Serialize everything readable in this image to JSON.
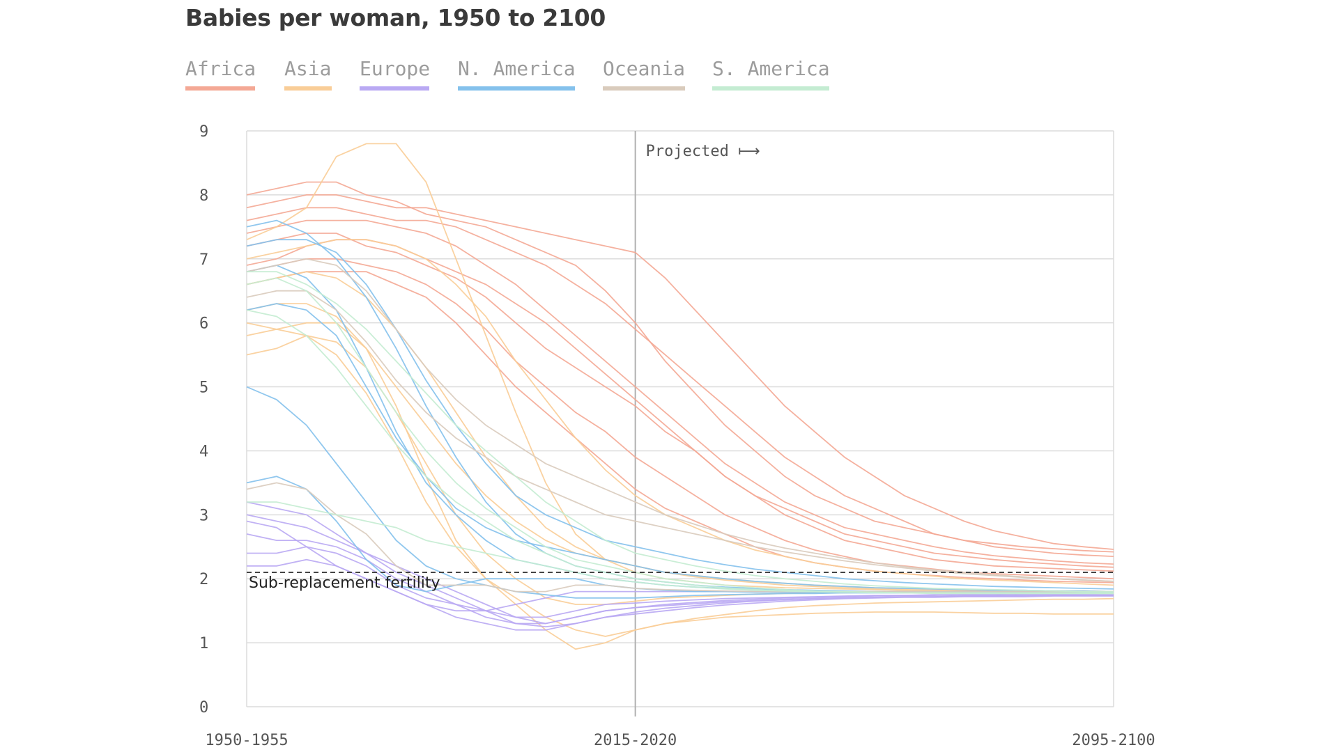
{
  "chart_data": {
    "type": "line",
    "title": "Babies per woman, 1950 to 2100",
    "xlabel": "",
    "ylabel": "",
    "x": [
      "1950-1955",
      "1955-1960",
      "1960-1965",
      "1965-1970",
      "1970-1975",
      "1975-1980",
      "1980-1985",
      "1985-1990",
      "1990-1995",
      "1995-2000",
      "2000-2005",
      "2005-2010",
      "2010-2015",
      "2015-2020",
      "2020-2025",
      "2025-2030",
      "2030-2035",
      "2035-2040",
      "2040-2045",
      "2045-2050",
      "2050-2055",
      "2055-2060",
      "2060-2065",
      "2065-2070",
      "2070-2075",
      "2075-2080",
      "2080-2085",
      "2085-2090",
      "2090-2095",
      "2095-2100"
    ],
    "x_tick_labels": [
      "1950-1955",
      "2015-2020",
      "2095-2100"
    ],
    "ylim": [
      0,
      9
    ],
    "y_ticks": [
      0,
      1,
      2,
      3,
      4,
      5,
      6,
      7,
      8,
      9
    ],
    "grid": true,
    "legend_position": "top",
    "projection_start": "2015-2020",
    "projection_label": "Projected ⟼",
    "reference_line": {
      "value": 2.1,
      "label": "Sub-replacement fertility",
      "style": "dashed"
    },
    "regions": [
      {
        "name": "Africa",
        "color": "#f4a895"
      },
      {
        "name": "Asia",
        "color": "#f9cd97"
      },
      {
        "name": "Europe",
        "color": "#b9a9f3"
      },
      {
        "name": "N. America",
        "color": "#84c1ec"
      },
      {
        "name": "Oceania",
        "color": "#d9cbbc"
      },
      {
        "name": "S. America",
        "color": "#c4ecd2"
      }
    ],
    "series": [
      {
        "region": "Africa",
        "values": [
          8.0,
          8.1,
          8.2,
          8.2,
          8.0,
          7.9,
          7.7,
          7.6,
          7.5,
          7.3,
          7.1,
          6.9,
          6.5,
          6.0,
          5.4,
          4.9,
          4.4,
          4.0,
          3.6,
          3.3,
          3.1,
          2.9,
          2.8,
          2.7,
          2.6,
          2.55,
          2.5,
          2.47,
          2.44,
          2.42
        ]
      },
      {
        "region": "Africa",
        "values": [
          7.6,
          7.7,
          7.8,
          7.8,
          7.7,
          7.6,
          7.6,
          7.5,
          7.3,
          7.1,
          6.9,
          6.6,
          6.3,
          5.9,
          5.5,
          5.1,
          4.7,
          4.3,
          3.9,
          3.6,
          3.3,
          3.1,
          2.9,
          2.7,
          2.6,
          2.5,
          2.45,
          2.4,
          2.37,
          2.35
        ]
      },
      {
        "region": "Africa",
        "values": [
          7.2,
          7.3,
          7.4,
          7.4,
          7.2,
          7.1,
          6.9,
          6.7,
          6.4,
          6.0,
          5.6,
          5.3,
          5.0,
          4.7,
          4.3,
          4.0,
          3.6,
          3.3,
          3.0,
          2.8,
          2.6,
          2.5,
          2.4,
          2.3,
          2.25,
          2.2,
          2.18,
          2.16,
          2.14,
          2.12
        ]
      },
      {
        "region": "Africa",
        "values": [
          6.8,
          6.9,
          7.0,
          7.0,
          6.9,
          6.8,
          6.6,
          6.3,
          5.9,
          5.4,
          5.0,
          4.6,
          4.3,
          3.9,
          3.6,
          3.3,
          3.0,
          2.8,
          2.6,
          2.45,
          2.35,
          2.25,
          2.2,
          2.15,
          2.1,
          2.08,
          2.06,
          2.04,
          2.02,
          2.0
        ]
      },
      {
        "region": "Africa",
        "values": [
          6.6,
          6.7,
          6.8,
          6.8,
          6.8,
          6.6,
          6.4,
          6.0,
          5.5,
          5.0,
          4.6,
          4.2,
          3.8,
          3.4,
          3.1,
          2.9,
          2.7,
          2.5,
          2.35,
          2.25,
          2.18,
          2.12,
          2.08,
          2.05,
          2.02,
          2.0,
          1.98,
          1.96,
          1.95,
          1.94
        ]
      },
      {
        "region": "Africa",
        "values": [
          6.9,
          7.0,
          7.2,
          7.3,
          7.3,
          7.2,
          7.0,
          6.8,
          6.6,
          6.3,
          6.0,
          5.6,
          5.2,
          4.8,
          4.4,
          4.0,
          3.6,
          3.3,
          3.1,
          2.9,
          2.7,
          2.6,
          2.5,
          2.4,
          2.35,
          2.3,
          2.26,
          2.23,
          2.2,
          2.18
        ]
      },
      {
        "region": "Africa",
        "values": [
          7.4,
          7.5,
          7.6,
          7.6,
          7.6,
          7.5,
          7.4,
          7.2,
          6.9,
          6.6,
          6.2,
          5.8,
          5.4,
          5.0,
          4.6,
          4.2,
          3.8,
          3.5,
          3.2,
          3.0,
          2.8,
          2.7,
          2.6,
          2.5,
          2.42,
          2.36,
          2.32,
          2.28,
          2.25,
          2.23
        ]
      },
      {
        "region": "Africa",
        "values": [
          7.8,
          7.9,
          8.0,
          8.0,
          7.9,
          7.8,
          7.8,
          7.7,
          7.6,
          7.5,
          7.4,
          7.3,
          7.2,
          7.1,
          6.7,
          6.2,
          5.7,
          5.2,
          4.7,
          4.3,
          3.9,
          3.6,
          3.3,
          3.1,
          2.9,
          2.75,
          2.65,
          2.55,
          2.5,
          2.46
        ]
      },
      {
        "region": "Asia",
        "values": [
          7.3,
          7.5,
          7.8,
          8.6,
          8.8,
          8.8,
          8.2,
          7.0,
          5.8,
          4.6,
          3.5,
          2.7,
          2.3,
          2.1,
          2.0,
          1.95,
          1.9,
          1.88,
          1.86,
          1.85,
          1.84,
          1.83,
          1.82,
          1.82,
          1.81,
          1.81,
          1.8,
          1.8,
          1.8,
          1.8
        ]
      },
      {
        "region": "Asia",
        "values": [
          6.2,
          6.3,
          6.3,
          6.1,
          5.6,
          4.7,
          3.6,
          2.6,
          2.0,
          1.7,
          1.4,
          1.2,
          1.1,
          1.2,
          1.3,
          1.35,
          1.4,
          1.42,
          1.44,
          1.46,
          1.47,
          1.48,
          1.48,
          1.48,
          1.47,
          1.46,
          1.46,
          1.45,
          1.45,
          1.45
        ]
      },
      {
        "region": "Asia",
        "values": [
          6.0,
          5.9,
          5.8,
          5.5,
          4.9,
          4.1,
          3.2,
          2.5,
          2.0,
          1.6,
          1.2,
          0.9,
          1.0,
          1.2,
          1.3,
          1.38,
          1.44,
          1.5,
          1.55,
          1.58,
          1.6,
          1.62,
          1.63,
          1.64,
          1.65,
          1.66,
          1.67,
          1.68,
          1.68,
          1.69
        ]
      },
      {
        "region": "Asia",
        "values": [
          6.6,
          6.7,
          6.8,
          6.7,
          6.4,
          5.9,
          5.3,
          4.6,
          3.9,
          3.3,
          2.8,
          2.5,
          2.3,
          2.2,
          2.1,
          2.05,
          2.0,
          1.96,
          1.93,
          1.9,
          1.88,
          1.86,
          1.85,
          1.84,
          1.83,
          1.82,
          1.82,
          1.81,
          1.81,
          1.8
        ]
      },
      {
        "region": "Asia",
        "values": [
          5.8,
          5.9,
          6.0,
          6.0,
          5.6,
          5.0,
          4.4,
          3.8,
          3.3,
          2.9,
          2.6,
          2.4,
          2.3,
          2.2,
          2.1,
          2.03,
          1.98,
          1.94,
          1.9,
          1.88,
          1.86,
          1.84,
          1.83,
          1.82,
          1.81,
          1.8,
          1.8,
          1.8,
          1.79,
          1.79
        ]
      },
      {
        "region": "Asia",
        "values": [
          7.0,
          7.1,
          7.2,
          7.3,
          7.3,
          7.2,
          7.0,
          6.6,
          6.1,
          5.4,
          4.8,
          4.2,
          3.7,
          3.3,
          3.0,
          2.8,
          2.6,
          2.45,
          2.35,
          2.25,
          2.18,
          2.12,
          2.08,
          2.04,
          2.0,
          1.98,
          1.96,
          1.94,
          1.92,
          1.9
        ]
      },
      {
        "region": "Asia",
        "values": [
          5.5,
          5.6,
          5.8,
          5.7,
          5.3,
          4.6,
          3.8,
          3.0,
          2.4,
          2.0,
          1.7,
          1.6,
          1.6,
          1.65,
          1.7,
          1.72,
          1.74,
          1.76,
          1.77,
          1.78,
          1.78,
          1.79,
          1.79,
          1.79,
          1.8,
          1.8,
          1.8,
          1.8,
          1.8,
          1.8
        ]
      },
      {
        "region": "Europe",
        "values": [
          3.0,
          2.9,
          2.8,
          2.6,
          2.4,
          2.2,
          2.0,
          1.8,
          1.6,
          1.4,
          1.3,
          1.4,
          1.5,
          1.55,
          1.6,
          1.63,
          1.66,
          1.68,
          1.7,
          1.71,
          1.72,
          1.73,
          1.74,
          1.74,
          1.75,
          1.75,
          1.76,
          1.76,
          1.76,
          1.77
        ]
      },
      {
        "region": "Europe",
        "values": [
          2.7,
          2.6,
          2.6,
          2.5,
          2.3,
          2.0,
          1.8,
          1.6,
          1.4,
          1.3,
          1.3,
          1.4,
          1.5,
          1.55,
          1.58,
          1.61,
          1.64,
          1.66,
          1.68,
          1.69,
          1.7,
          1.71,
          1.72,
          1.72,
          1.73,
          1.73,
          1.73,
          1.74,
          1.74,
          1.74
        ]
      },
      {
        "region": "Europe",
        "values": [
          2.4,
          2.4,
          2.5,
          2.4,
          2.2,
          1.9,
          1.7,
          1.6,
          1.5,
          1.4,
          1.4,
          1.5,
          1.6,
          1.62,
          1.65,
          1.67,
          1.69,
          1.7,
          1.71,
          1.72,
          1.73,
          1.74,
          1.74,
          1.75,
          1.75,
          1.75,
          1.76,
          1.76,
          1.76,
          1.76
        ]
      },
      {
        "region": "Europe",
        "values": [
          3.2,
          3.1,
          3.0,
          2.7,
          2.4,
          2.1,
          1.9,
          1.7,
          1.5,
          1.3,
          1.25,
          1.3,
          1.4,
          1.48,
          1.54,
          1.58,
          1.62,
          1.65,
          1.67,
          1.69,
          1.7,
          1.71,
          1.72,
          1.72,
          1.73,
          1.73,
          1.74,
          1.74,
          1.74,
          1.74
        ]
      },
      {
        "region": "Europe",
        "values": [
          2.2,
          2.2,
          2.3,
          2.2,
          2.0,
          1.8,
          1.6,
          1.5,
          1.5,
          1.6,
          1.7,
          1.8,
          1.8,
          1.8,
          1.8,
          1.8,
          1.8,
          1.8,
          1.8,
          1.8,
          1.8,
          1.8,
          1.8,
          1.8,
          1.8,
          1.8,
          1.8,
          1.8,
          1.8,
          1.8
        ]
      },
      {
        "region": "Europe",
        "values": [
          2.9,
          2.8,
          2.5,
          2.2,
          2.0,
          1.8,
          1.6,
          1.4,
          1.3,
          1.2,
          1.2,
          1.3,
          1.4,
          1.45,
          1.5,
          1.55,
          1.59,
          1.62,
          1.65,
          1.67,
          1.69,
          1.7,
          1.71,
          1.71,
          1.72,
          1.72,
          1.72,
          1.73,
          1.73,
          1.73
        ]
      },
      {
        "region": "N. America",
        "values": [
          7.5,
          7.6,
          7.4,
          7.0,
          6.4,
          5.6,
          4.7,
          3.9,
          3.2,
          2.7,
          2.4,
          2.2,
          2.1,
          2.0,
          1.95,
          1.9,
          1.87,
          1.85,
          1.83,
          1.82,
          1.81,
          1.8,
          1.8,
          1.8,
          1.79,
          1.79,
          1.79,
          1.79,
          1.79,
          1.79
        ]
      },
      {
        "region": "N. America",
        "values": [
          6.8,
          6.9,
          6.7,
          6.2,
          5.3,
          4.3,
          3.5,
          3.0,
          2.6,
          2.3,
          2.2,
          2.1,
          2.0,
          1.95,
          1.9,
          1.87,
          1.85,
          1.83,
          1.82,
          1.81,
          1.8,
          1.8,
          1.79,
          1.79,
          1.79,
          1.79,
          1.78,
          1.78,
          1.78,
          1.78
        ]
      },
      {
        "region": "N. America",
        "values": [
          5.0,
          4.8,
          4.4,
          3.8,
          3.2,
          2.6,
          2.2,
          2.0,
          1.9,
          1.8,
          1.75,
          1.7,
          1.7,
          1.7,
          1.72,
          1.74,
          1.75,
          1.76,
          1.77,
          1.77,
          1.78,
          1.78,
          1.78,
          1.78,
          1.79,
          1.79,
          1.79,
          1.79,
          1.79,
          1.79
        ]
      },
      {
        "region": "N. America",
        "values": [
          6.2,
          6.3,
          6.2,
          5.8,
          5.0,
          4.2,
          3.6,
          3.1,
          2.8,
          2.6,
          2.5,
          2.4,
          2.3,
          2.2,
          2.1,
          2.05,
          2.0,
          1.96,
          1.93,
          1.9,
          1.88,
          1.86,
          1.85,
          1.84,
          1.83,
          1.82,
          1.82,
          1.81,
          1.81,
          1.8
        ]
      },
      {
        "region": "N. America",
        "values": [
          3.5,
          3.6,
          3.4,
          2.9,
          2.3,
          1.9,
          1.8,
          1.9,
          2.0,
          2.0,
          2.0,
          2.0,
          1.9,
          1.85,
          1.82,
          1.8,
          1.8,
          1.79,
          1.79,
          1.79,
          1.78,
          1.78,
          1.78,
          1.78,
          1.78,
          1.78,
          1.78,
          1.78,
          1.78,
          1.78
        ]
      },
      {
        "region": "N. America",
        "values": [
          7.2,
          7.3,
          7.3,
          7.1,
          6.6,
          5.9,
          5.1,
          4.4,
          3.8,
          3.3,
          3.0,
          2.8,
          2.6,
          2.5,
          2.4,
          2.3,
          2.22,
          2.15,
          2.1,
          2.05,
          2.0,
          1.97,
          1.94,
          1.92,
          1.9,
          1.88,
          1.87,
          1.86,
          1.85,
          1.84
        ]
      },
      {
        "region": "Oceania",
        "values": [
          6.4,
          6.5,
          6.5,
          6.2,
          5.7,
          5.1,
          4.6,
          4.2,
          3.9,
          3.6,
          3.4,
          3.2,
          3.0,
          2.9,
          2.8,
          2.7,
          2.6,
          2.5,
          2.42,
          2.35,
          2.28,
          2.22,
          2.17,
          2.12,
          2.08,
          2.05,
          2.02,
          2.0,
          1.98,
          1.96
        ]
      },
      {
        "region": "Oceania",
        "values": [
          3.4,
          3.5,
          3.4,
          3.0,
          2.7,
          2.2,
          1.9,
          1.9,
          1.9,
          1.8,
          1.8,
          1.9,
          1.9,
          1.85,
          1.83,
          1.82,
          1.81,
          1.8,
          1.8,
          1.8,
          1.8,
          1.8,
          1.8,
          1.8,
          1.8,
          1.8,
          1.8,
          1.8,
          1.8,
          1.8
        ]
      },
      {
        "region": "Oceania",
        "values": [
          6.8,
          6.9,
          7.0,
          6.9,
          6.5,
          5.9,
          5.3,
          4.8,
          4.4,
          4.1,
          3.8,
          3.6,
          3.4,
          3.2,
          3.0,
          2.85,
          2.7,
          2.58,
          2.48,
          2.4,
          2.32,
          2.25,
          2.19,
          2.14,
          2.1,
          2.06,
          2.03,
          2.0,
          1.98,
          1.96
        ]
      },
      {
        "region": "S. America",
        "values": [
          6.6,
          6.7,
          6.5,
          6.0,
          5.3,
          4.6,
          4.0,
          3.5,
          3.1,
          2.8,
          2.5,
          2.3,
          2.2,
          2.1,
          2.0,
          1.95,
          1.9,
          1.86,
          1.83,
          1.81,
          1.8,
          1.79,
          1.78,
          1.78,
          1.77,
          1.77,
          1.77,
          1.77,
          1.77,
          1.77
        ]
      },
      {
        "region": "S. America",
        "values": [
          6.2,
          6.1,
          5.8,
          5.3,
          4.7,
          4.1,
          3.6,
          3.2,
          2.9,
          2.6,
          2.4,
          2.2,
          2.1,
          2.0,
          1.95,
          1.9,
          1.86,
          1.83,
          1.81,
          1.8,
          1.79,
          1.78,
          1.78,
          1.77,
          1.77,
          1.77,
          1.77,
          1.77,
          1.77,
          1.77
        ]
      },
      {
        "region": "S. America",
        "values": [
          3.2,
          3.2,
          3.1,
          3.0,
          2.9,
          2.8,
          2.6,
          2.5,
          2.4,
          2.3,
          2.2,
          2.1,
          2.0,
          1.95,
          1.9,
          1.87,
          1.84,
          1.82,
          1.81,
          1.8,
          1.79,
          1.79,
          1.78,
          1.78,
          1.78,
          1.78,
          1.78,
          1.78,
          1.78,
          1.78
        ]
      },
      {
        "region": "S. America",
        "values": [
          6.8,
          6.8,
          6.6,
          6.3,
          5.9,
          5.4,
          4.9,
          4.4,
          4.0,
          3.6,
          3.2,
          2.9,
          2.6,
          2.4,
          2.3,
          2.2,
          2.12,
          2.05,
          2.0,
          1.96,
          1.92,
          1.89,
          1.87,
          1.85,
          1.84,
          1.83,
          1.82,
          1.81,
          1.8,
          1.8
        ]
      }
    ]
  }
}
